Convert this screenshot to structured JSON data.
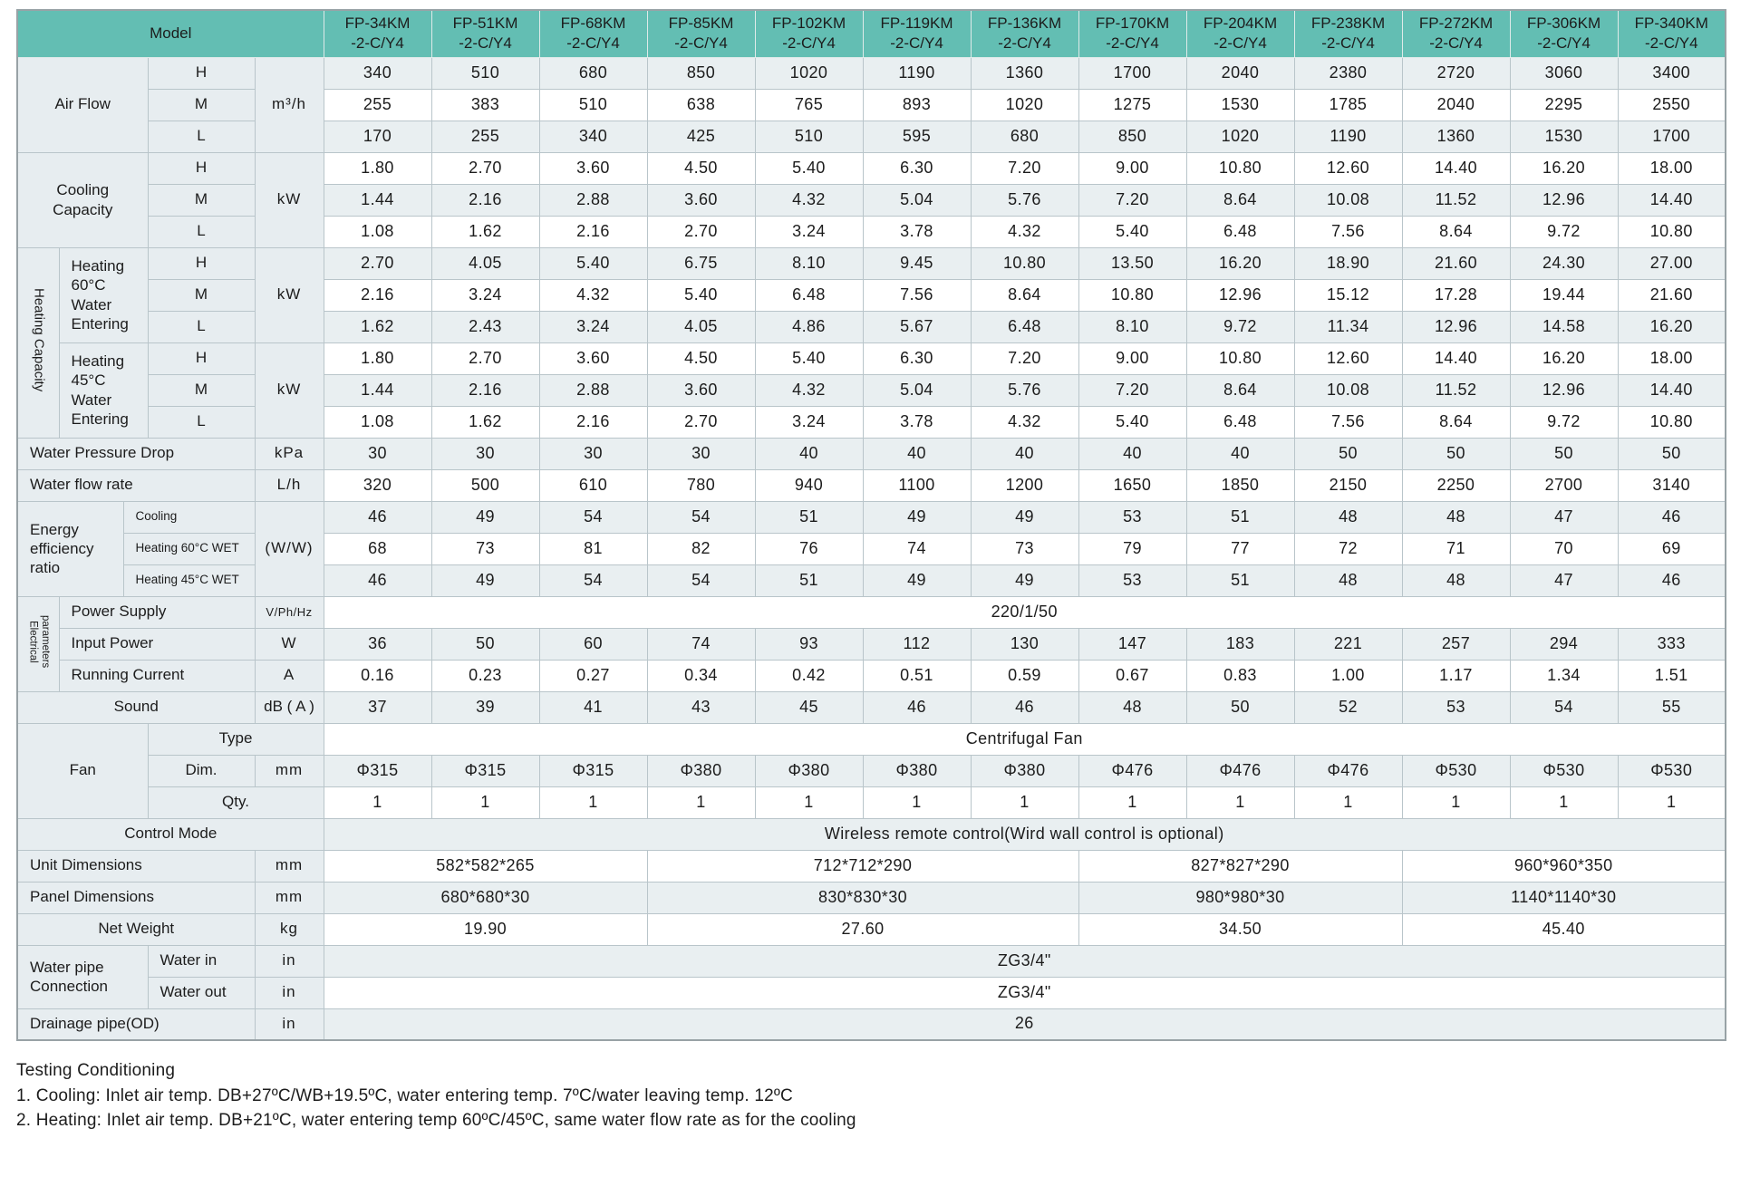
{
  "colors": {
    "header_teal": "#63beb3",
    "label_bg": "#e7edf0",
    "row_shade": "#e9eff1"
  },
  "table": {
    "header": {
      "model_label": "Model",
      "models": [
        "FP-34KM\n-2-C/Y4",
        "FP-51KM\n-2-C/Y4",
        "FP-68KM\n-2-C/Y4",
        "FP-85KM\n-2-C/Y4",
        "FP-102KM\n-2-C/Y4",
        "FP-119KM\n-2-C/Y4",
        "FP-136KM\n-2-C/Y4",
        "FP-170KM\n-2-C/Y4",
        "FP-204KM\n-2-C/Y4",
        "FP-238KM\n-2-C/Y4",
        "FP-272KM\n-2-C/Y4",
        "FP-306KM\n-2-C/Y4",
        "FP-340KM\n-2-C/Y4"
      ]
    },
    "rows": [
      {
        "id": "air-flow-h",
        "labels": [
          {
            "t": "Air Flow",
            "cs": 3,
            "rs": 3,
            "n": "air-flow-label"
          },
          {
            "t": "H",
            "n": "speed-h-label"
          },
          {
            "t": "m³/h",
            "rs": 3,
            "cls": "unit",
            "n": "unit-label"
          }
        ],
        "values": [
          "340",
          "510",
          "680",
          "850",
          "1020",
          "1190",
          "1360",
          "1700",
          "2040",
          "2380",
          "2720",
          "3060",
          "3400"
        ]
      },
      {
        "id": "air-flow-m",
        "labels": [
          {
            "t": "M",
            "n": "speed-m-label"
          }
        ],
        "values": [
          "255",
          "383",
          "510",
          "638",
          "765",
          "893",
          "1020",
          "1275",
          "1530",
          "1785",
          "2040",
          "2295",
          "2550"
        ]
      },
      {
        "id": "air-flow-l",
        "labels": [
          {
            "t": "L",
            "n": "speed-l-label"
          }
        ],
        "values": [
          "170",
          "255",
          "340",
          "425",
          "510",
          "595",
          "680",
          "850",
          "1020",
          "1190",
          "1360",
          "1530",
          "1700"
        ]
      },
      {
        "id": "cooling-h",
        "labels": [
          {
            "t": "Cooling\nCapacity",
            "cs": 3,
            "rs": 3,
            "cls": "pre",
            "n": "cooling-capacity-label"
          },
          {
            "t": "H",
            "n": "speed-h-label"
          },
          {
            "t": "kW",
            "rs": 3,
            "cls": "unit",
            "n": "unit-label"
          }
        ],
        "values": [
          "1.80",
          "2.70",
          "3.60",
          "4.50",
          "5.40",
          "6.30",
          "7.20",
          "9.00",
          "10.80",
          "12.60",
          "14.40",
          "16.20",
          "18.00"
        ]
      },
      {
        "id": "cooling-m",
        "labels": [
          {
            "t": "M",
            "n": "speed-m-label"
          }
        ],
        "values": [
          "1.44",
          "2.16",
          "2.88",
          "3.60",
          "4.32",
          "5.04",
          "5.76",
          "7.20",
          "8.64",
          "10.08",
          "11.52",
          "12.96",
          "14.40"
        ]
      },
      {
        "id": "cooling-l",
        "labels": [
          {
            "t": "L",
            "n": "speed-l-label"
          }
        ],
        "values": [
          "1.08",
          "1.62",
          "2.16",
          "2.70",
          "3.24",
          "3.78",
          "4.32",
          "5.40",
          "6.48",
          "7.56",
          "8.64",
          "9.72",
          "10.80"
        ]
      },
      {
        "id": "heating60-h",
        "labels": [
          {
            "t": "Heating Capacity",
            "rs": 6,
            "cls": "vert",
            "n": "heating-capacity-label"
          },
          {
            "t": "Heating\n60°C\nWater\nEntering",
            "cs": 2,
            "rs": 3,
            "cls": "pre left",
            "n": "heating-60-label"
          },
          {
            "t": "H",
            "n": "speed-h-label"
          },
          {
            "t": "kW",
            "rs": 3,
            "cls": "unit",
            "n": "unit-label"
          }
        ],
        "values": [
          "2.70",
          "4.05",
          "5.40",
          "6.75",
          "8.10",
          "9.45",
          "10.80",
          "13.50",
          "16.20",
          "18.90",
          "21.60",
          "24.30",
          "27.00"
        ]
      },
      {
        "id": "heating60-m",
        "labels": [
          {
            "t": "M",
            "n": "speed-m-label"
          }
        ],
        "values": [
          "2.16",
          "3.24",
          "4.32",
          "5.40",
          "6.48",
          "7.56",
          "8.64",
          "10.80",
          "12.96",
          "15.12",
          "17.28",
          "19.44",
          "21.60"
        ]
      },
      {
        "id": "heating60-l",
        "labels": [
          {
            "t": "L",
            "n": "speed-l-label"
          }
        ],
        "values": [
          "1.62",
          "2.43",
          "3.24",
          "4.05",
          "4.86",
          "5.67",
          "6.48",
          "8.10",
          "9.72",
          "11.34",
          "12.96",
          "14.58",
          "16.20"
        ]
      },
      {
        "id": "heating45-h",
        "labels": [
          {
            "t": "Heating\n45°C\nWater\nEntering",
            "cs": 2,
            "rs": 3,
            "cls": "pre left",
            "n": "heating-45-label"
          },
          {
            "t": "H",
            "n": "speed-h-label"
          },
          {
            "t": "kW",
            "rs": 3,
            "cls": "unit",
            "n": "unit-label"
          }
        ],
        "values": [
          "1.80",
          "2.70",
          "3.60",
          "4.50",
          "5.40",
          "6.30",
          "7.20",
          "9.00",
          "10.80",
          "12.60",
          "14.40",
          "16.20",
          "18.00"
        ]
      },
      {
        "id": "heating45-m",
        "labels": [
          {
            "t": "M",
            "n": "speed-m-label"
          }
        ],
        "values": [
          "1.44",
          "2.16",
          "2.88",
          "3.60",
          "4.32",
          "5.04",
          "5.76",
          "7.20",
          "8.64",
          "10.08",
          "11.52",
          "12.96",
          "14.40"
        ]
      },
      {
        "id": "heating45-l",
        "labels": [
          {
            "t": "L",
            "n": "speed-l-label"
          }
        ],
        "values": [
          "1.08",
          "1.62",
          "2.16",
          "2.70",
          "3.24",
          "3.78",
          "4.32",
          "5.40",
          "6.48",
          "7.56",
          "8.64",
          "9.72",
          "10.80"
        ]
      },
      {
        "id": "water-pressure-drop",
        "labels": [
          {
            "t": "Water Pressure Drop",
            "cs": 4,
            "cls": "left",
            "n": "water-pressure-drop-label"
          },
          {
            "t": "kPa",
            "cls": "unit",
            "n": "unit-label"
          }
        ],
        "values": [
          "30",
          "30",
          "30",
          "30",
          "40",
          "40",
          "40",
          "40",
          "40",
          "50",
          "50",
          "50",
          "50"
        ]
      },
      {
        "id": "water-flow-rate",
        "labels": [
          {
            "t": "Water flow rate",
            "cs": 4,
            "cls": "left",
            "n": "water-flow-rate-label"
          },
          {
            "t": "L/h",
            "cls": "unit",
            "n": "unit-label"
          }
        ],
        "values": [
          "320",
          "500",
          "610",
          "780",
          "940",
          "1100",
          "1200",
          "1650",
          "1850",
          "2150",
          "2250",
          "2700",
          "3140"
        ]
      },
      {
        "id": "eer-cooling",
        "labels": [
          {
            "t": "Energy\nefficiency\nratio",
            "cs": 2,
            "rs": 3,
            "cls": "pre left",
            "n": "eer-label"
          },
          {
            "t": "Cooling",
            "cs": 2,
            "cls": "small left",
            "n": "eer-cooling-label"
          },
          {
            "t": "(W/W)",
            "rs": 3,
            "cls": "unit",
            "n": "unit-label"
          }
        ],
        "values": [
          "46",
          "49",
          "54",
          "54",
          "51",
          "49",
          "49",
          "53",
          "51",
          "48",
          "48",
          "47",
          "46"
        ]
      },
      {
        "id": "eer-heating60",
        "labels": [
          {
            "t": "Heating 60°C WET",
            "cs": 2,
            "cls": "small left",
            "n": "eer-heating60-label"
          }
        ],
        "values": [
          "68",
          "73",
          "81",
          "82",
          "76",
          "74",
          "73",
          "79",
          "77",
          "72",
          "71",
          "70",
          "69"
        ]
      },
      {
        "id": "eer-heating45",
        "labels": [
          {
            "t": "Heating 45°C WET",
            "cs": 2,
            "cls": "small left",
            "n": "eer-heating45-label"
          }
        ],
        "values": [
          "46",
          "49",
          "54",
          "54",
          "51",
          "49",
          "49",
          "53",
          "51",
          "48",
          "48",
          "47",
          "46"
        ]
      },
      {
        "id": "power-supply",
        "labels": [
          {
            "t": "Electrical\nparameters",
            "rs": 3,
            "cls": "vert vsmall",
            "n": "electrical-parameters-label"
          },
          {
            "t": "Power Supply",
            "cs": 3,
            "cls": "left",
            "n": "power-supply-label"
          },
          {
            "t": "V/Ph/Hz",
            "cls": "usmall",
            "n": "unit-label"
          }
        ],
        "values": [
          {
            "t": "220/1/50",
            "span": 13
          }
        ]
      },
      {
        "id": "input-power",
        "labels": [
          {
            "t": "Input Power",
            "cs": 3,
            "cls": "left",
            "n": "input-power-label"
          },
          {
            "t": "W",
            "cls": "unit",
            "n": "unit-label"
          }
        ],
        "values": [
          "36",
          "50",
          "60",
          "74",
          "93",
          "112",
          "130",
          "147",
          "183",
          "221",
          "257",
          "294",
          "333"
        ]
      },
      {
        "id": "running-current",
        "labels": [
          {
            "t": "Running Current",
            "cs": 3,
            "cls": "left",
            "n": "running-current-label"
          },
          {
            "t": "A",
            "cls": "unit",
            "n": "unit-label"
          }
        ],
        "values": [
          "0.16",
          "0.23",
          "0.27",
          "0.34",
          "0.42",
          "0.51",
          "0.59",
          "0.67",
          "0.83",
          "1.00",
          "1.17",
          "1.34",
          "1.51"
        ]
      },
      {
        "id": "sound",
        "labels": [
          {
            "t": "Sound",
            "cs": 4,
            "n": "sound-label"
          },
          {
            "t": "dB ( A )",
            "n": "unit-label"
          }
        ],
        "values": [
          "37",
          "39",
          "41",
          "43",
          "45",
          "46",
          "46",
          "48",
          "50",
          "52",
          "53",
          "54",
          "55"
        ]
      },
      {
        "id": "fan-type",
        "labels": [
          {
            "t": "Fan",
            "cs": 3,
            "rs": 3,
            "n": "fan-label"
          },
          {
            "t": "Type",
            "cs": 2,
            "n": "fan-type-label"
          }
        ],
        "values": [
          {
            "t": "Centrifugal Fan",
            "span": 13
          }
        ]
      },
      {
        "id": "fan-dim",
        "labels": [
          {
            "t": "Dim.",
            "n": "fan-dim-label"
          },
          {
            "t": "mm",
            "cls": "unit",
            "n": "unit-label"
          }
        ],
        "values": [
          "Φ315",
          "Φ315",
          "Φ315",
          "Φ380",
          "Φ380",
          "Φ380",
          "Φ380",
          "Φ476",
          "Φ476",
          "Φ476",
          "Φ530",
          "Φ530",
          "Φ530"
        ]
      },
      {
        "id": "fan-qty",
        "labels": [
          {
            "t": "Qty.",
            "cs": 2,
            "n": "fan-qty-label"
          }
        ],
        "values": [
          "1",
          "1",
          "1",
          "1",
          "1",
          "1",
          "1",
          "1",
          "1",
          "1",
          "1",
          "1",
          "1"
        ]
      },
      {
        "id": "control-mode",
        "labels": [
          {
            "t": "Control Mode",
            "cs": 5,
            "n": "control-mode-label"
          }
        ],
        "values": [
          {
            "t": "Wireless remote control(Wird wall control is optional)",
            "span": 13
          }
        ]
      },
      {
        "id": "unit-dimensions",
        "labels": [
          {
            "t": "Unit Dimensions",
            "cs": 4,
            "cls": "left",
            "n": "unit-dimensions-label"
          },
          {
            "t": "mm",
            "cls": "unit",
            "n": "unit-label"
          }
        ],
        "values": [
          {
            "t": "582*582*265",
            "span": 3
          },
          {
            "t": "712*712*290",
            "span": 4
          },
          {
            "t": "827*827*290",
            "span": 3
          },
          {
            "t": "960*960*350",
            "span": 3
          }
        ]
      },
      {
        "id": "panel-dimensions",
        "labels": [
          {
            "t": "Panel Dimensions",
            "cs": 4,
            "cls": "left",
            "n": "panel-dimensions-label"
          },
          {
            "t": "mm",
            "cls": "unit",
            "n": "unit-label"
          }
        ],
        "values": [
          {
            "t": "680*680*30",
            "span": 3
          },
          {
            "t": "830*830*30",
            "span": 4
          },
          {
            "t": "980*980*30",
            "span": 3
          },
          {
            "t": "1140*1140*30",
            "span": 3
          }
        ]
      },
      {
        "id": "net-weight",
        "labels": [
          {
            "t": "Net Weight",
            "cs": 4,
            "n": "net-weight-label"
          },
          {
            "t": "kg",
            "cls": "unit",
            "n": "unit-label"
          }
        ],
        "values": [
          {
            "t": "19.90",
            "span": 3
          },
          {
            "t": "27.60",
            "span": 4
          },
          {
            "t": "34.50",
            "span": 3
          },
          {
            "t": "45.40",
            "span": 3
          }
        ]
      },
      {
        "id": "water-in",
        "labels": [
          {
            "t": "Water pipe\nConnection",
            "cs": 3,
            "rs": 2,
            "cls": "pre left",
            "n": "water-pipe-connection-label"
          },
          {
            "t": "Water in",
            "cls": "left",
            "n": "water-in-label"
          },
          {
            "t": "in",
            "cls": "unit",
            "n": "unit-label"
          }
        ],
        "values": [
          {
            "t": "ZG3/4\"",
            "span": 13
          }
        ]
      },
      {
        "id": "water-out",
        "labels": [
          {
            "t": "Water out",
            "cls": "left",
            "n": "water-out-label"
          },
          {
            "t": "in",
            "cls": "unit",
            "n": "unit-label"
          }
        ],
        "values": [
          {
            "t": "ZG3/4\"",
            "span": 13
          }
        ]
      },
      {
        "id": "drainage-pipe",
        "labels": [
          {
            "t": "Drainage pipe(OD)",
            "cs": 4,
            "cls": "left",
            "n": "drainage-pipe-label"
          },
          {
            "t": "in",
            "cls": "unit",
            "n": "unit-label"
          }
        ],
        "values": [
          {
            "t": "26",
            "span": 13
          }
        ]
      }
    ]
  },
  "footer": {
    "title": "Testing Conditioning",
    "note1": "1. Cooling: Inlet air temp. DB+27ºC/WB+19.5ºC, water entering temp. 7ºC/water leaving temp. 12ºC",
    "note2": "2. Heating: Inlet air temp. DB+21ºC, water entering temp 60ºC/45ºC, same water flow rate as for the cooling"
  }
}
